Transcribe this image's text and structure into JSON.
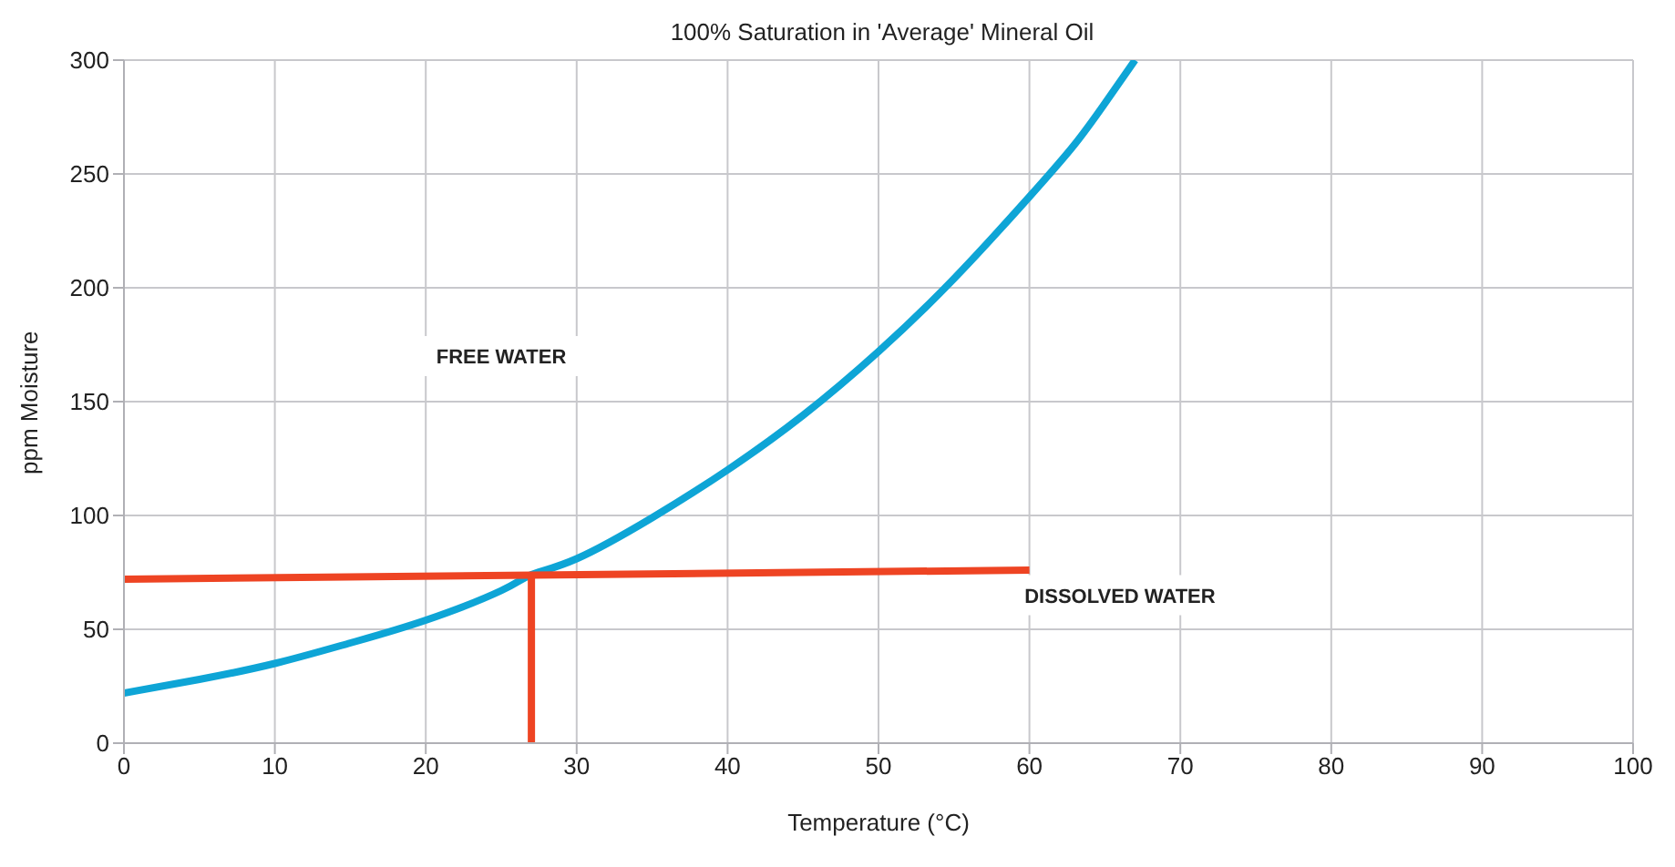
{
  "chart_data": {
    "type": "line",
    "title": "100% Saturation in 'Average' Mineral Oil",
    "xlabel": "Temperature (°C)",
    "ylabel": "ppm Moisture",
    "xlim": [
      0,
      100
    ],
    "xticks": [
      0,
      10,
      20,
      30,
      40,
      50,
      60,
      70,
      80,
      90,
      100
    ],
    "ylim": [
      0,
      300
    ],
    "yticks": [
      0,
      50,
      100,
      150,
      200,
      250,
      300
    ],
    "grid": true,
    "marker": "none",
    "line_style": "solid",
    "series": [
      {
        "color": "#0ea5d6",
        "x": [
          0,
          5,
          10,
          15,
          20,
          25,
          27,
          30,
          35,
          40,
          45,
          50,
          55,
          60,
          63,
          65,
          67
        ],
        "values": [
          22,
          28,
          35,
          44,
          54,
          67,
          74,
          81,
          99,
          120,
          144,
          172,
          204,
          240,
          263,
          281,
          300
        ]
      },
      {
        "color": "#ee4423",
        "x": [
          0,
          60
        ],
        "values": [
          72,
          76
        ]
      },
      {
        "color": "#ee4423",
        "x": [
          27,
          27
        ],
        "values": [
          0,
          74
        ]
      }
    ],
    "annotations": [
      "FREE WATER",
      "DISSOLVED WATER"
    ]
  }
}
